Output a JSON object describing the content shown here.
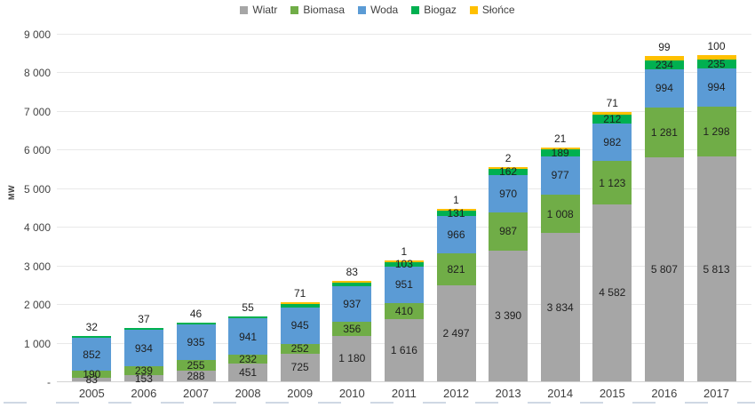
{
  "chart_data": {
    "type": "bar",
    "stacked": true,
    "title": "",
    "ylabel": "MW",
    "ylim": [
      0,
      9000
    ],
    "ytick_step": 1000,
    "ytick_labels": [
      "-",
      "1 000",
      "2 000",
      "3 000",
      "4 000",
      "5 000",
      "6 000",
      "7 000",
      "8 000",
      "9 000"
    ],
    "grid": true,
    "legend_position": "top",
    "categories": [
      "2005",
      "2006",
      "2007",
      "2008",
      "2009",
      "2010",
      "2011",
      "2012",
      "2013",
      "2014",
      "2015",
      "2016",
      "2017"
    ],
    "series": [
      {
        "name": "Wiatr",
        "key": "wiatr",
        "color": "#A6A6A6",
        "values": [
          83,
          153,
          288,
          451,
          725,
          1180,
          1616,
          2497,
          3390,
          3834,
          4582,
          5807,
          5813
        ],
        "labels": [
          "83",
          "153",
          "288",
          "451",
          "725",
          "1 180",
          "1 616",
          "2 497",
          "3 390",
          "3 834",
          "4 582",
          "5 807",
          "5 813"
        ]
      },
      {
        "name": "Biomasa",
        "key": "biomasa",
        "color": "#70AD47",
        "values": [
          190,
          239,
          255,
          232,
          252,
          356,
          410,
          821,
          987,
          1008,
          1123,
          1281,
          1298
        ],
        "labels": [
          "190",
          "239",
          "255",
          "232",
          "252",
          "356",
          "410",
          "821",
          "987",
          "1 008",
          "1 123",
          "1 281",
          "1 298"
        ]
      },
      {
        "name": "Woda",
        "key": "woda",
        "color": "#5B9BD5",
        "values": [
          852,
          934,
          935,
          941,
          945,
          937,
          951,
          966,
          970,
          977,
          982,
          994,
          994
        ],
        "labels": [
          "852",
          "934",
          "935",
          "941",
          "945",
          "937",
          "951",
          "966",
          "970",
          "977",
          "982",
          "994",
          "994"
        ]
      },
      {
        "name": "Biogaz",
        "key": "biogaz",
        "color": "#00B050",
        "values": [
          32,
          37,
          46,
          55,
          71,
          83,
          103,
          131,
          162,
          189,
          212,
          234,
          235
        ],
        "labels": [
          "",
          "",
          "",
          "",
          "",
          "",
          "103",
          "131",
          "162",
          "189",
          "212",
          "234",
          "235"
        ]
      },
      {
        "name": "Słońce",
        "key": "slonce",
        "color": "#FFC000",
        "values": [
          0,
          0,
          0,
          0,
          0.03,
          0.03,
          1,
          1,
          2,
          21,
          71,
          99,
          100
        ],
        "labels": [
          "",
          "",
          "",
          "",
          "",
          "",
          "",
          "",
          "",
          "",
          "",
          "",
          ""
        ]
      }
    ],
    "outside_labels": [
      "32",
      "37",
      "46",
      "55",
      "71",
      "83",
      "1",
      "1",
      "2",
      "21",
      "71",
      "99",
      "100"
    ]
  }
}
